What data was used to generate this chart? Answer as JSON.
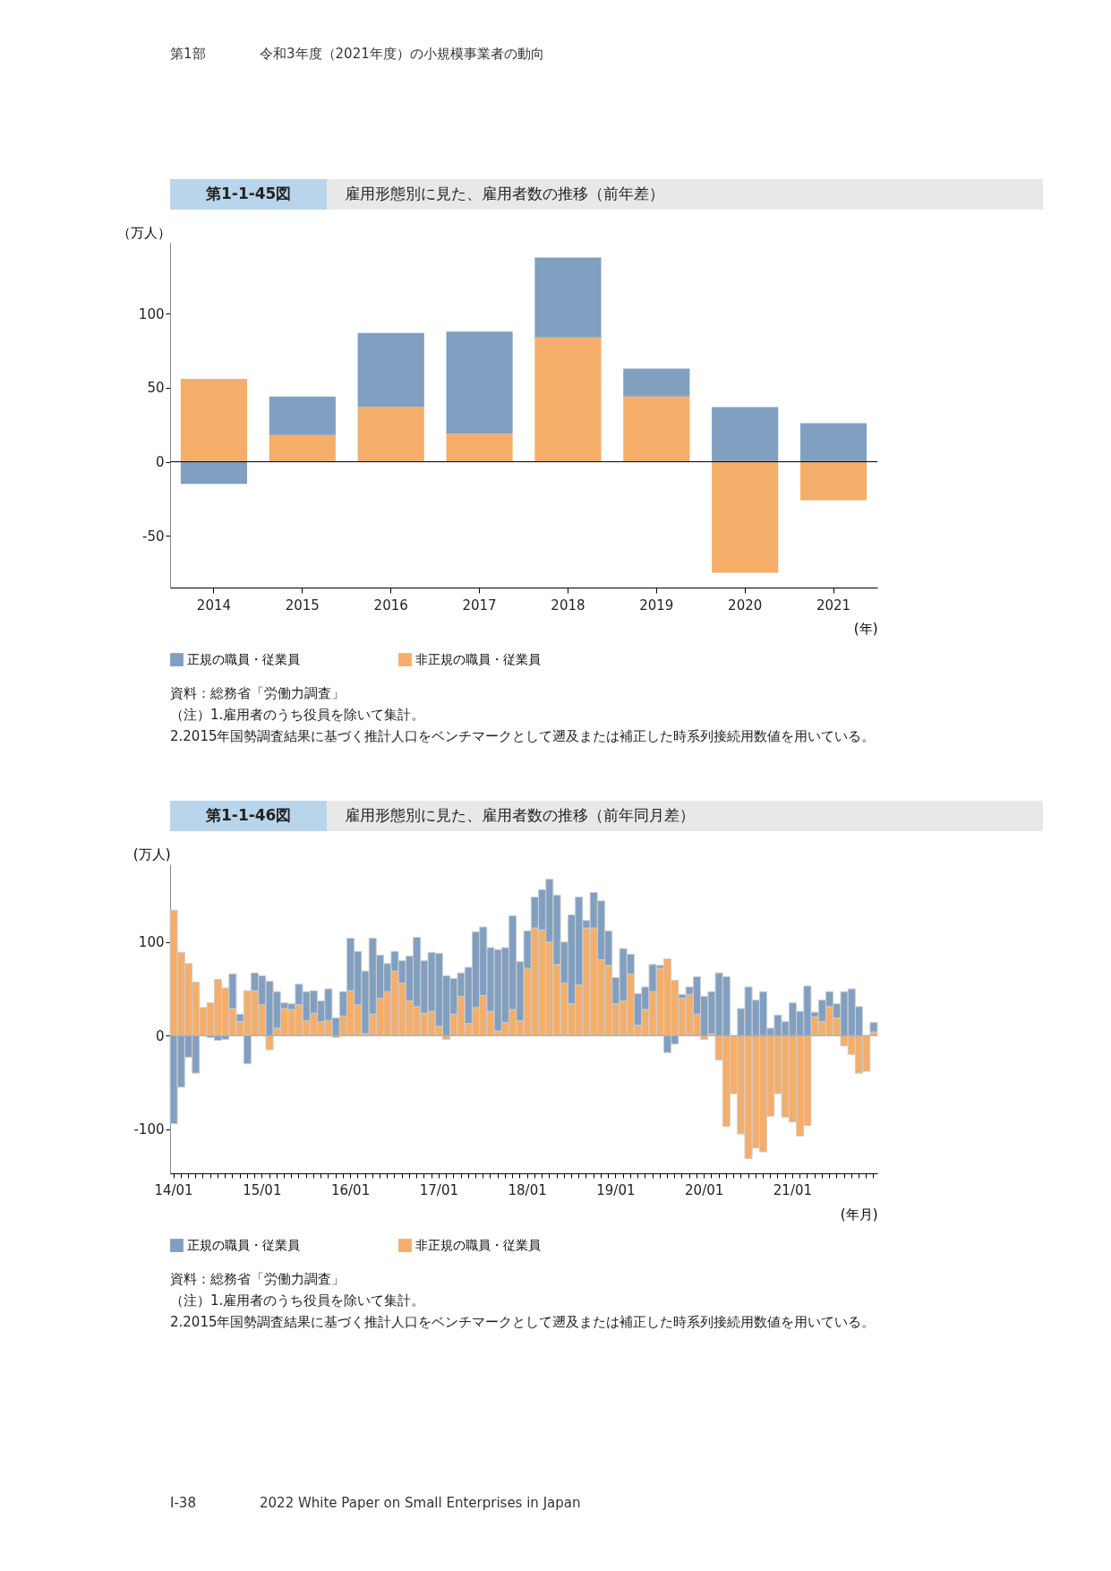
{
  "chart_data": [
    {
      "type": "other",
      "annotations": [
        "第1部",
        "令和3年度（2021年度）の小規模事業者の動向"
      ]
    },
    {
      "type": "bar",
      "title": "第1-1-45図",
      "subtitle": "雇用形態別に見た、雇用者数の推移（前年差）",
      "ylabel": "（万人）",
      "xlabel": "(年)",
      "stacked": true,
      "categories": [
        "2014",
        "2015",
        "2016",
        "2017",
        "2018",
        "2019",
        "2020",
        "2021"
      ],
      "series": [
        {
          "name": "非正規の職員・従業員",
          "color": "#f4ae69",
          "values": [
            56,
            18,
            37,
            19,
            84,
            44,
            -75,
            -26
          ]
        },
        {
          "name": "正規の職員・従業員",
          "color": "#819fc0",
          "values": [
            -15,
            26,
            50,
            69,
            54,
            19,
            37,
            26
          ]
        }
      ],
      "ylim": [
        -85,
        148
      ],
      "yticks": [
        -50,
        0,
        50,
        100
      ],
      "grid": false,
      "legend": "bottom",
      "ref_lines": [
        {
          "axis": "y",
          "value": 0,
          "color": "#000000"
        }
      ],
      "annotations": [
        "資料：総務省「労働力調査」",
        "（注）1.雇用者のうち役員を除いて集計。",
        "2.2015年国勢調査結果に基づく推計人口をベンチマークとして遡及または補正した時系列接続用数値を用いている。"
      ]
    },
    {
      "type": "bar",
      "title": "第1-1-46図",
      "subtitle": "雇用形態別に見た、雇用者数の推移（前年同月差）",
      "ylabel": "(万人)",
      "xlabel": "(年月)",
      "stacked": true,
      "categories": [
        "14/01",
        null,
        null,
        null,
        null,
        null,
        null,
        null,
        null,
        null,
        null,
        null,
        "15/01",
        null,
        null,
        null,
        null,
        null,
        null,
        null,
        null,
        null,
        null,
        null,
        "16/01",
        null,
        null,
        null,
        null,
        null,
        null,
        null,
        null,
        null,
        null,
        null,
        "17/01",
        null,
        null,
        null,
        null,
        null,
        null,
        null,
        null,
        null,
        null,
        null,
        "18/01",
        null,
        null,
        null,
        null,
        null,
        null,
        null,
        null,
        null,
        null,
        null,
        "19/01",
        null,
        null,
        null,
        null,
        null,
        null,
        null,
        null,
        null,
        null,
        null,
        "20/01",
        null,
        null,
        null,
        null,
        null,
        null,
        null,
        null,
        null,
        null,
        null,
        "21/01",
        null,
        null,
        null,
        null,
        null,
        null,
        null,
        null,
        null,
        null,
        null
      ],
      "series": [
        {
          "name": "非正規の職員・従業員",
          "color": "#f4ae69",
          "values": [
            134,
            89,
            77,
            57,
            30,
            35,
            60,
            51,
            29,
            15,
            48,
            48,
            33,
            -15,
            8,
            29,
            28,
            33,
            16,
            24,
            15,
            16,
            -2,
            21,
            48,
            33,
            2,
            23,
            40,
            47,
            69,
            56,
            37,
            31,
            24,
            26,
            10,
            -4,
            23,
            42,
            13,
            30,
            43,
            26,
            5,
            14,
            28,
            16,
            72,
            115,
            113,
            100,
            76,
            56,
            34,
            54,
            115,
            115,
            81,
            75,
            34,
            37,
            66,
            11,
            28,
            47,
            72,
            82,
            59,
            40,
            44,
            23,
            -4,
            2,
            -26,
            -97,
            -62,
            -105,
            -131,
            -120,
            -124,
            -86,
            -62,
            -87,
            -92,
            -107,
            -96,
            20,
            15,
            31,
            19,
            -11,
            -20,
            -40,
            -38,
            4
          ]
        },
        {
          "name": "正規の職員・従業員",
          "color": "#819fc0",
          "values": [
            -94,
            -55,
            -23,
            -40,
            null,
            -2,
            -5,
            -4,
            37,
            8,
            -30,
            19,
            31,
            58,
            39,
            6,
            6,
            22,
            31,
            24,
            22,
            34,
            19,
            26,
            56,
            57,
            67,
            81,
            46,
            30,
            21,
            24,
            48,
            74,
            56,
            63,
            78,
            64,
            38,
            25,
            60,
            81,
            73,
            68,
            87,
            80,
            100,
            63,
            40,
            33,
            43,
            67,
            74,
            44,
            95,
            94,
            8,
            38,
            63,
            37,
            28,
            56,
            21,
            34,
            24,
            29,
            3,
            -18,
            -9,
            4,
            8,
            40,
            42,
            45,
            67,
            63,
            null,
            29,
            52,
            38,
            47,
            8,
            22,
            15,
            35,
            26,
            53,
            5,
            23,
            16,
            15,
            47,
            50,
            31,
            null,
            10
          ]
        }
      ],
      "ylim": [
        -147,
        183
      ],
      "yticks": [
        -100,
        0,
        100
      ],
      "grid": false,
      "legend": "bottom",
      "ref_lines": [
        {
          "axis": "y",
          "value": 0,
          "color": "#aaaaaa"
        }
      ],
      "annotations": [
        "資料：総務省「労働力調査」",
        "（注）1.雇用者のうち役員を除いて集計。",
        "2.2015年国勢調査結果に基づく推計人口をベンチマークとして遡及または補正した時系列接続用数値を用いている。"
      ]
    },
    {
      "type": "other",
      "annotations": [
        "I-38",
        "2022 White Paper on Small Enterprises in Japan"
      ]
    }
  ]
}
